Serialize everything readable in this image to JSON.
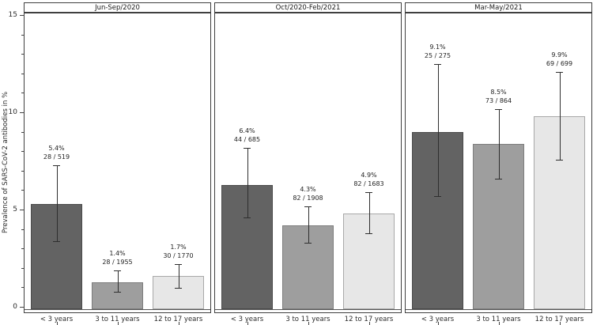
{
  "chart_data": {
    "type": "bar",
    "ylabel": "Prevalence of SARS-CoV-2 antibodies in %",
    "ylim": [
      0,
      15.3
    ],
    "ytick_major": [
      0,
      5,
      10,
      15
    ],
    "ytick_minor_step": 1,
    "grid": false,
    "legend": "none",
    "categories": [
      "< 3 years",
      "3 to 11 years",
      "12 to 17 years"
    ],
    "bar_colors": [
      "#636363",
      "#9e9e9e",
      "#e7e7e7"
    ],
    "bar_border_colors": [
      "#4a4a4a",
      "#7d7d7d",
      "#a8a8a8"
    ],
    "error_bar_color": "#2e2e2e",
    "panels": [
      {
        "title": "Jun-Sep/2020",
        "bars": [
          {
            "category": "< 3 years",
            "value": 5.4,
            "pct_label": "5.4%",
            "count_label": "28 / 519",
            "ci_low": 3.5,
            "ci_high": 7.4
          },
          {
            "category": "3 to 11 years",
            "value": 1.4,
            "pct_label": "1.4%",
            "count_label": "28 / 1955",
            "ci_low": 0.9,
            "ci_high": 2.0
          },
          {
            "category": "12 to 17 years",
            "value": 1.7,
            "pct_label": "1.7%",
            "count_label": "30 / 1770",
            "ci_low": 1.1,
            "ci_high": 2.3
          }
        ]
      },
      {
        "title": "Oct/2020-Feb/2021",
        "bars": [
          {
            "category": "< 3 years",
            "value": 6.4,
            "pct_label": "6.4%",
            "count_label": "44 / 685",
            "ci_low": 4.7,
            "ci_high": 8.3
          },
          {
            "category": "3 to 11 years",
            "value": 4.3,
            "pct_label": "4.3%",
            "count_label": "82 / 1908",
            "ci_low": 3.4,
            "ci_high": 5.3
          },
          {
            "category": "12 to 17 years",
            "value": 4.9,
            "pct_label": "4.9%",
            "count_label": "82 / 1683",
            "ci_low": 3.9,
            "ci_high": 6.0
          }
        ]
      },
      {
        "title": "Mar-May/2021",
        "bars": [
          {
            "category": "< 3 years",
            "value": 9.1,
            "pct_label": "9.1%",
            "count_label": "25 / 275",
            "ci_low": 5.8,
            "ci_high": 12.6
          },
          {
            "category": "3 to 11 years",
            "value": 8.5,
            "pct_label": "8.5%",
            "count_label": "73 / 864",
            "ci_low": 6.7,
            "ci_high": 10.3
          },
          {
            "category": "12 to 17 years",
            "value": 9.9,
            "pct_label": "9.9%",
            "count_label": "69 / 699",
            "ci_low": 7.7,
            "ci_high": 12.2
          }
        ]
      }
    ]
  }
}
